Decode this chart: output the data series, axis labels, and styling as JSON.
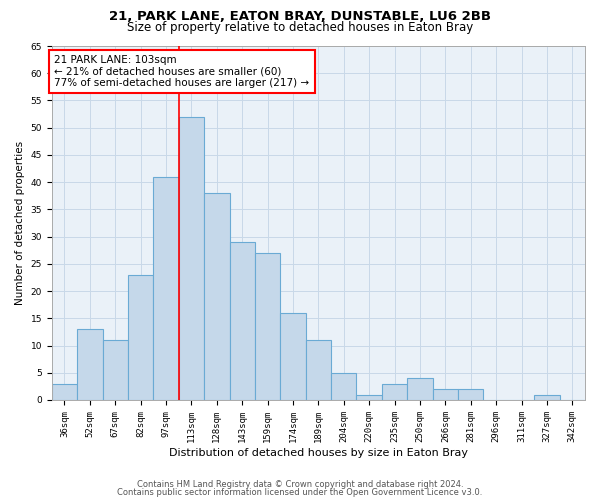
{
  "title1": "21, PARK LANE, EATON BRAY, DUNSTABLE, LU6 2BB",
  "title2": "Size of property relative to detached houses in Eaton Bray",
  "xlabel": "Distribution of detached houses by size in Eaton Bray",
  "ylabel": "Number of detached properties",
  "categories": [
    "36sqm",
    "52sqm",
    "67sqm",
    "82sqm",
    "97sqm",
    "113sqm",
    "128sqm",
    "143sqm",
    "159sqm",
    "174sqm",
    "189sqm",
    "204sqm",
    "220sqm",
    "235sqm",
    "250sqm",
    "266sqm",
    "281sqm",
    "296sqm",
    "311sqm",
    "327sqm",
    "342sqm"
  ],
  "values": [
    3,
    13,
    11,
    23,
    41,
    52,
    38,
    29,
    27,
    16,
    11,
    5,
    1,
    3,
    4,
    2,
    2,
    0,
    0,
    1,
    0
  ],
  "bar_color": "#c5d8ea",
  "bar_edge_color": "#6aaad4",
  "vline_x": 4.5,
  "vline_color": "red",
  "annotation_box_text": "21 PARK LANE: 103sqm\n← 21% of detached houses are smaller (60)\n77% of semi-detached houses are larger (217) →",
  "annotation_box_color": "white",
  "annotation_box_edge_color": "red",
  "ylim": [
    0,
    65
  ],
  "yticks": [
    0,
    5,
    10,
    15,
    20,
    25,
    30,
    35,
    40,
    45,
    50,
    55,
    60,
    65
  ],
  "grid_color": "#c8d8e8",
  "bg_color": "#eaf1f8",
  "footer1": "Contains HM Land Registry data © Crown copyright and database right 2024.",
  "footer2": "Contains public sector information licensed under the Open Government Licence v3.0.",
  "title1_fontsize": 9.5,
  "title2_fontsize": 8.5,
  "xlabel_fontsize": 8,
  "ylabel_fontsize": 7.5,
  "tick_fontsize": 6.5,
  "annotation_fontsize": 7.5,
  "footer_fontsize": 6
}
